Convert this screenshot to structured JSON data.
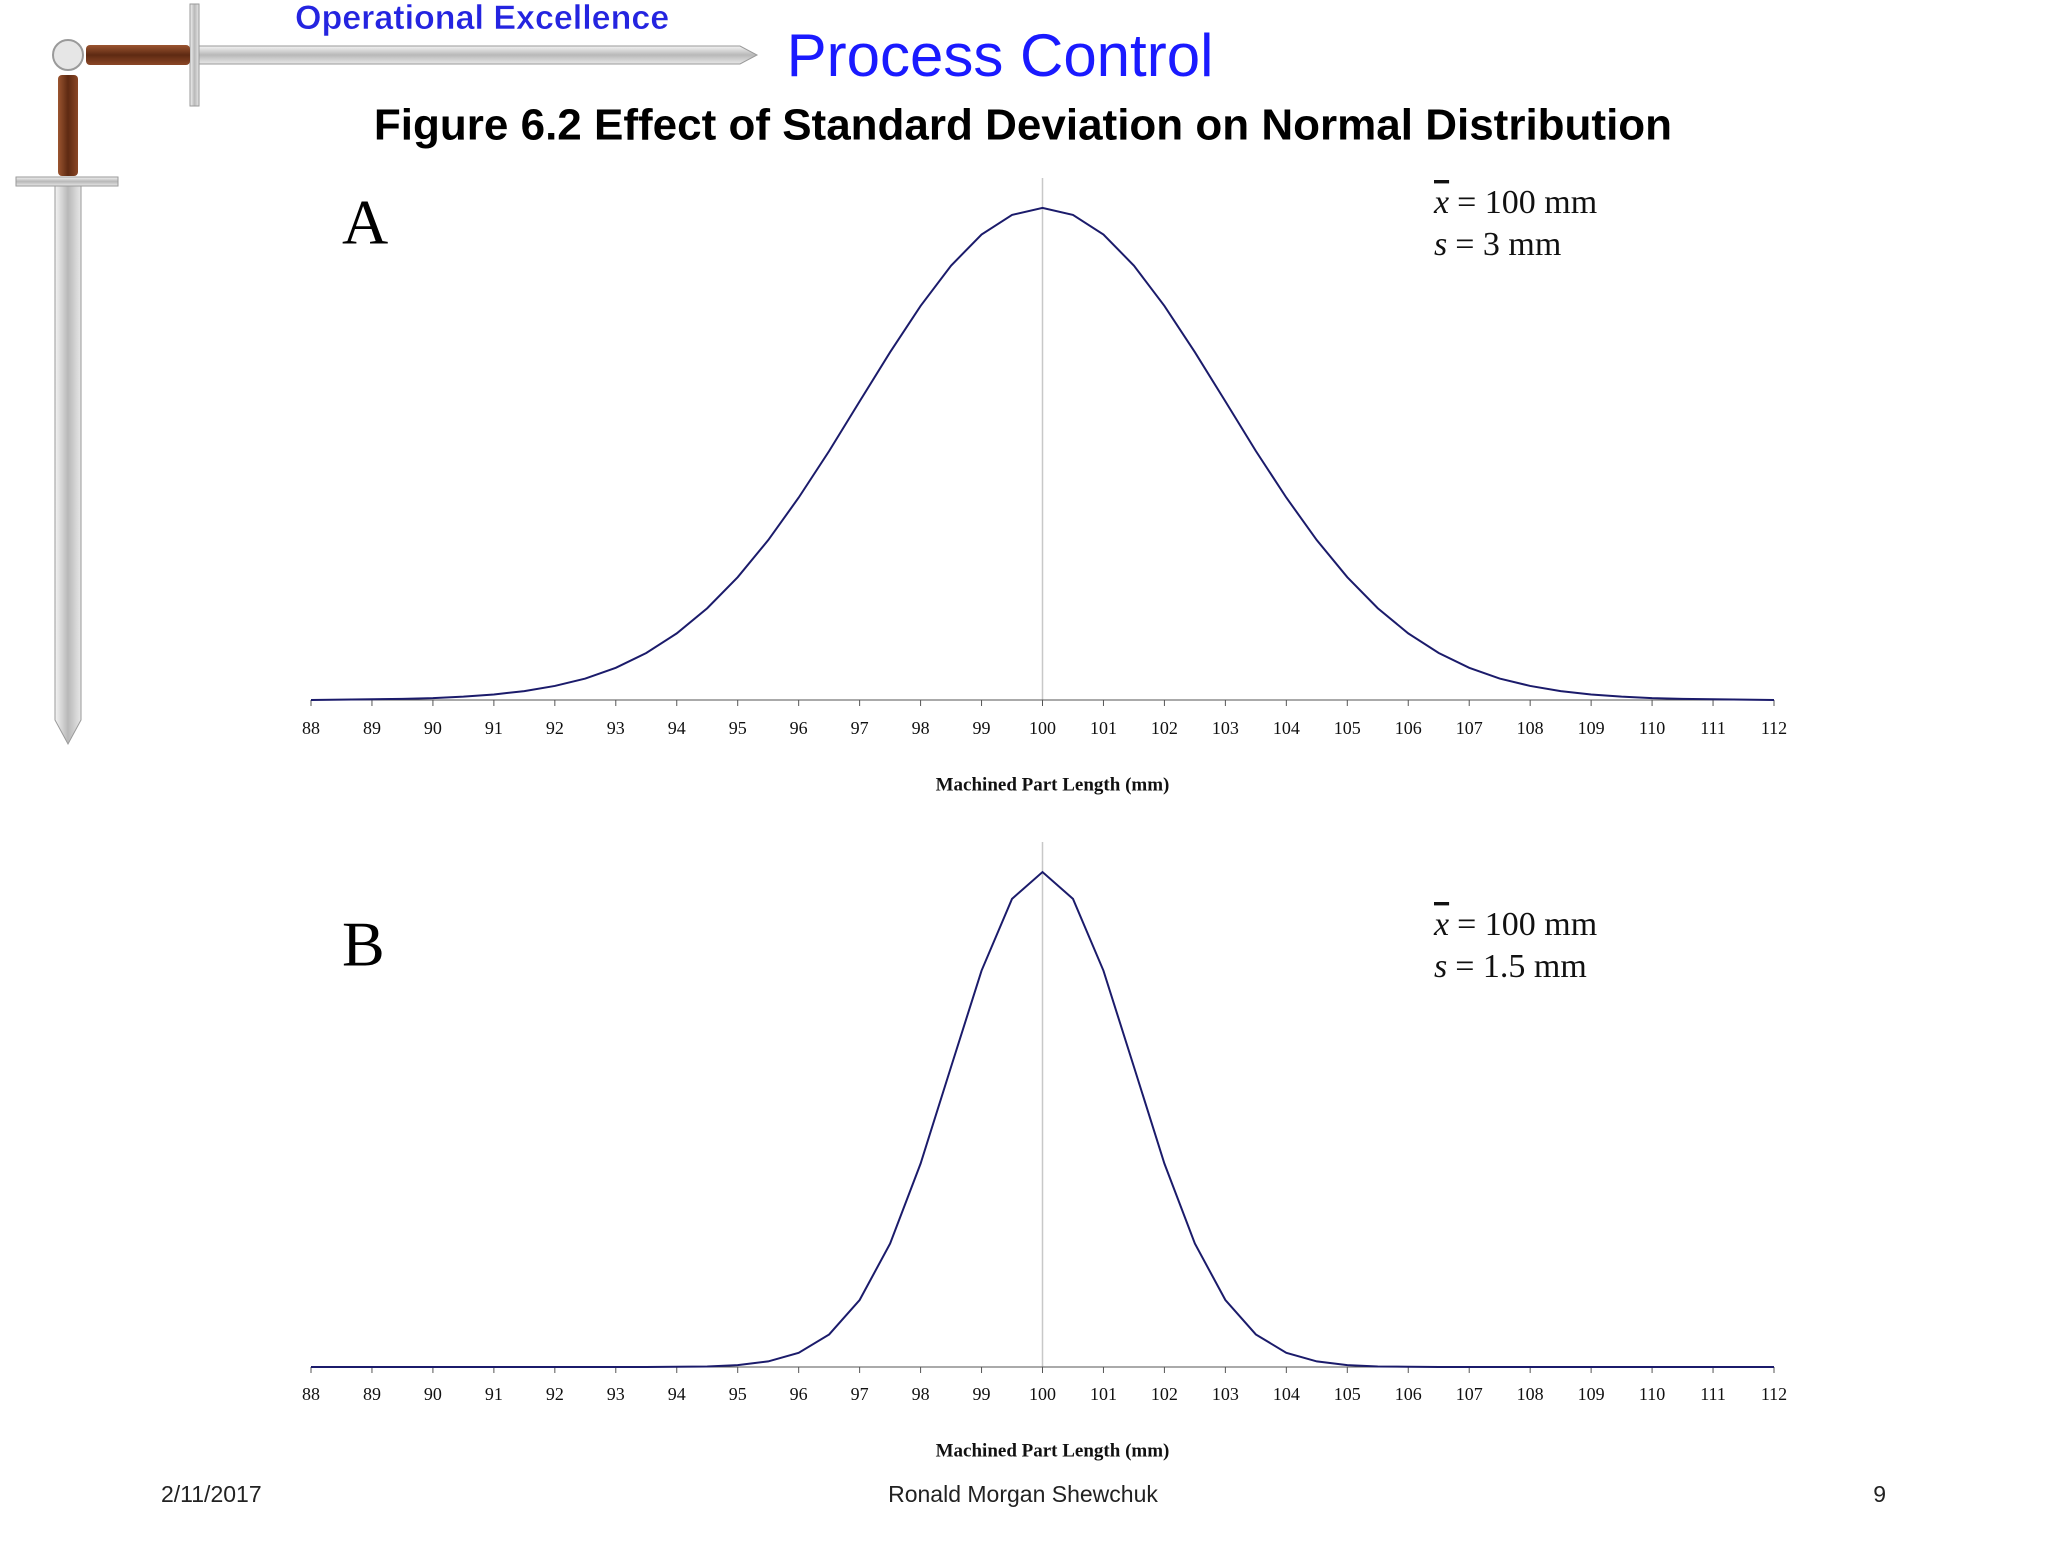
{
  "header": {
    "brand": "Operational Excellence",
    "title": "Process Control",
    "figure_title": "Figure 6.2  Effect of Standard Deviation on Normal Distribution"
  },
  "chart_data": [
    {
      "type": "line",
      "label": "A",
      "annotations": [
        {
          "symbol": "x",
          "text": "= 100 mm"
        },
        {
          "symbol": "s",
          "text": "= 3 mm"
        }
      ],
      "x_label": "Machined Part Length (mm)",
      "mean_line": 100,
      "x": [
        88,
        88.5,
        89,
        89.5,
        90,
        90.5,
        91,
        91.5,
        92,
        92.5,
        93,
        93.5,
        94,
        94.5,
        95,
        95.5,
        96,
        96.5,
        97,
        97.5,
        98,
        98.5,
        99,
        99.5,
        100,
        100.5,
        101,
        101.5,
        102,
        102.5,
        103,
        103.5,
        104,
        104.5,
        105,
        105.5,
        106,
        106.5,
        107,
        107.5,
        108,
        108.5,
        109,
        109.5,
        110,
        110.5,
        111,
        111.5,
        112
      ],
      "series": [
        {
          "color": "#1b1b6b",
          "values": [
            0,
            0.0001,
            0.0002,
            0.0003,
            0.0005,
            0.0009,
            0.0015,
            0.0024,
            0.0038,
            0.0058,
            0.0087,
            0.0127,
            0.018,
            0.0248,
            0.0332,
            0.0432,
            0.0547,
            0.0673,
            0.0807,
            0.094,
            0.1065,
            0.1174,
            0.1258,
            0.1311,
            0.133,
            0.1311,
            0.1258,
            0.1174,
            0.1065,
            0.094,
            0.0807,
            0.0673,
            0.0547,
            0.0432,
            0.0332,
            0.0248,
            0.018,
            0.0127,
            0.0087,
            0.0058,
            0.0038,
            0.0024,
            0.0015,
            0.0009,
            0.0005,
            0.0003,
            0.0002,
            0.0001,
            0
          ]
        }
      ],
      "xlim": [
        88,
        112
      ],
      "xticks": [
        88,
        89,
        90,
        91,
        92,
        93,
        94,
        95,
        96,
        97,
        98,
        99,
        100,
        101,
        102,
        103,
        104,
        105,
        106,
        107,
        108,
        109,
        110,
        111,
        112
      ],
      "ylim": [
        0,
        0.14
      ]
    },
    {
      "type": "line",
      "label": "B",
      "annotations": [
        {
          "symbol": "x",
          "text": "= 100 mm"
        },
        {
          "symbol": "s",
          "text": "= 1.5 mm"
        }
      ],
      "x_label": "Machined Part Length (mm)",
      "mean_line": 100,
      "x": [
        88,
        88.5,
        89,
        89.5,
        90,
        90.5,
        91,
        91.5,
        92,
        92.5,
        93,
        93.5,
        94,
        94.5,
        95,
        95.5,
        96,
        96.5,
        97,
        97.5,
        98,
        98.5,
        99,
        99.5,
        100,
        100.5,
        101,
        101.5,
        102,
        102.5,
        103,
        103.5,
        104,
        104.5,
        105,
        105.5,
        106,
        106.5,
        107,
        107.5,
        108,
        108.5,
        109,
        109.5,
        110,
        110.5,
        111,
        111.5,
        112
      ],
      "series": [
        {
          "color": "#1b1b6b",
          "values": [
            0,
            0,
            0,
            0,
            0,
            0,
            0,
            0,
            0,
            0,
            0,
            0,
            0.0001,
            0.0003,
            0.001,
            0.003,
            0.0076,
            0.0175,
            0.036,
            0.0663,
            0.1093,
            0.1613,
            0.213,
            0.2516,
            0.266,
            0.2516,
            0.213,
            0.1613,
            0.1093,
            0.0663,
            0.036,
            0.0175,
            0.0076,
            0.003,
            0.001,
            0.0003,
            0.0001,
            0,
            0,
            0,
            0,
            0,
            0,
            0,
            0,
            0,
            0,
            0,
            0
          ]
        }
      ],
      "xlim": [
        88,
        112
      ],
      "xticks": [
        88,
        89,
        90,
        91,
        92,
        93,
        94,
        95,
        96,
        97,
        98,
        99,
        100,
        101,
        102,
        103,
        104,
        105,
        106,
        107,
        108,
        109,
        110,
        111,
        112
      ],
      "ylim": [
        0,
        0.28
      ]
    }
  ],
  "footer": {
    "date": "2/11/2017",
    "author": "Ronald Morgan Shewchuk",
    "page": "9"
  }
}
